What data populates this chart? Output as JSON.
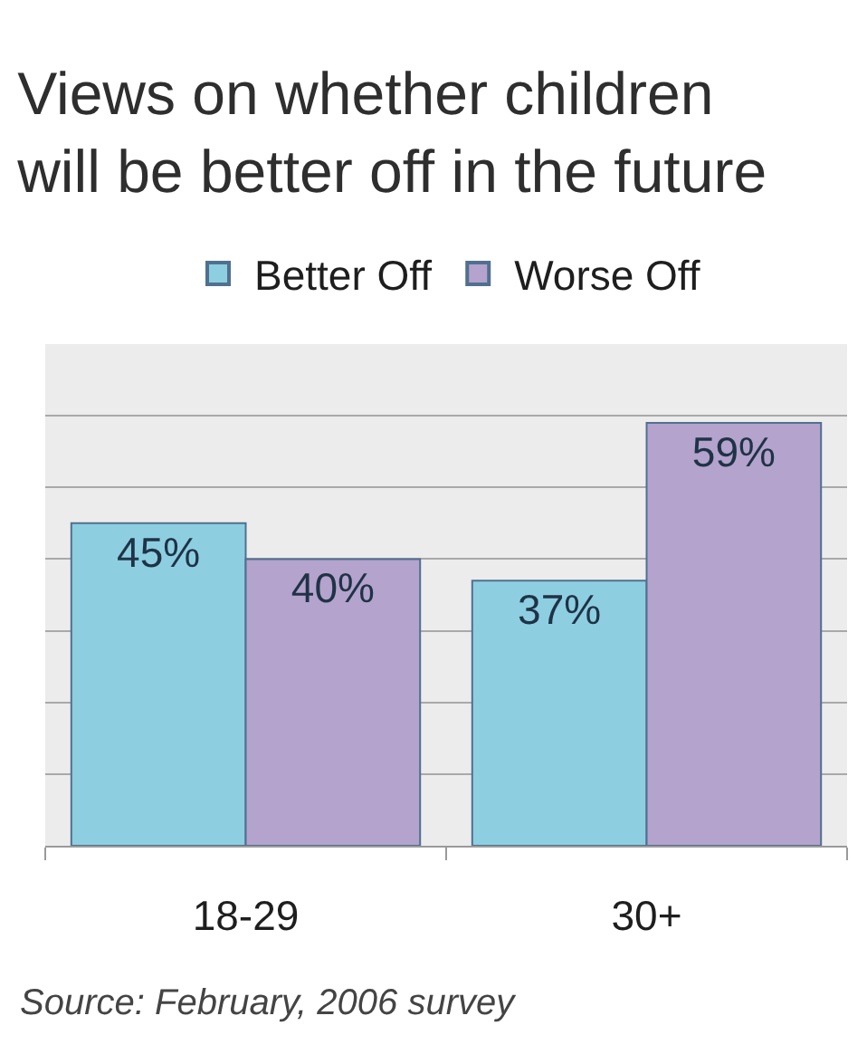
{
  "chart_data": {
    "type": "bar",
    "title": "Views on whether children\nwill be better off in the future",
    "categories": [
      "18-29",
      "30+"
    ],
    "series": [
      {
        "name": "Better Off",
        "color": "#8dcfe0",
        "values": [
          45,
          37
        ],
        "value_labels": [
          "45%",
          "37%"
        ]
      },
      {
        "name": "Worse Off",
        "color": "#b4a3cc",
        "values": [
          40,
          59
        ],
        "value_labels": [
          "40%",
          "59%"
        ]
      }
    ],
    "ylim": [
      0,
      70
    ],
    "yticks": [
      {
        "value": 0,
        "label": null
      },
      {
        "value": 10,
        "label": null
      },
      {
        "value": 20,
        "label": null
      },
      {
        "value": 30,
        "label": null
      },
      {
        "value": 40,
        "label": null
      },
      {
        "value": 50,
        "label": null
      },
      {
        "value": 60,
        "label": null
      },
      {
        "value": 70,
        "label": null
      }
    ],
    "grid": "y",
    "legend": "top",
    "tick_labels": "x",
    "annotations": [
      "Source: February, 2006 survey"
    ]
  }
}
